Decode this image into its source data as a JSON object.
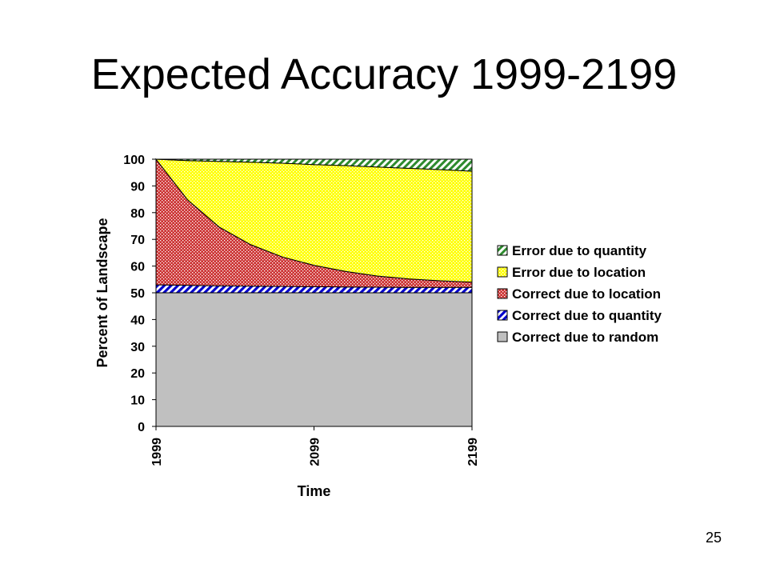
{
  "slide": {
    "title": "Expected Accuracy 1999-2199",
    "page_number": "25"
  },
  "chart_data": {
    "type": "area",
    "stacked": true,
    "xlabel": "Time",
    "ylabel": "Percent of Landscape",
    "x": [
      1999,
      2019,
      2039,
      2059,
      2079,
      2099,
      2119,
      2139,
      2159,
      2179,
      2199
    ],
    "x_ticks": [
      "1999",
      "2099",
      "2199"
    ],
    "y_ticks": [
      "0",
      "10",
      "20",
      "30",
      "40",
      "50",
      "60",
      "70",
      "80",
      "90",
      "100"
    ],
    "ylim": [
      0,
      100
    ],
    "grid": false,
    "legend_position": "right",
    "series": [
      {
        "name": "Correct due to random",
        "fill": "#c0c0c0",
        "pattern": "solid",
        "values": [
          50,
          50,
          50,
          50,
          50,
          50,
          50,
          50,
          50,
          50,
          50
        ]
      },
      {
        "name": "Correct due to quantity",
        "fill": "#0000cc",
        "pattern": "diagonal-stripes",
        "values": [
          3,
          2.8,
          2.6,
          2.5,
          2.4,
          2.3,
          2.2,
          2.1,
          2,
          2,
          2
        ]
      },
      {
        "name": "Correct due to location",
        "fill": "#cc3333",
        "pattern": "dots",
        "values": [
          47,
          32,
          22,
          15.5,
          11,
          8,
          5.8,
          4.2,
          3.2,
          2.5,
          2
        ]
      },
      {
        "name": "Error due to location",
        "fill": "#ffff00",
        "pattern": "dots",
        "values": [
          0,
          14.7,
          24.6,
          30.9,
          35.1,
          37.7,
          39.6,
          40.8,
          41.4,
          41.6,
          41.5
        ]
      },
      {
        "name": "Error due to quantity",
        "fill": "#2e8b2e",
        "pattern": "diagonal-stripes",
        "values": [
          0,
          0.5,
          0.8,
          1.1,
          1.5,
          2,
          2.4,
          2.9,
          3.4,
          3.9,
          4.5
        ]
      }
    ]
  }
}
